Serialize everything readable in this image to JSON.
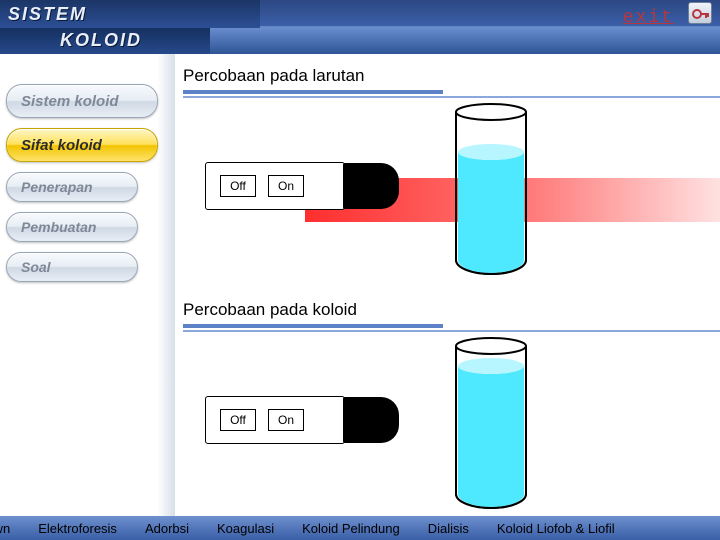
{
  "app": {
    "title1": "SISTEM",
    "title2": "KOLOID",
    "exit_label": "exit"
  },
  "nav": {
    "items": [
      {
        "label": "Sistem koloid",
        "small": false
      },
      {
        "label": "Sifat koloid",
        "small": false
      },
      {
        "label": "Penerapan",
        "small": true
      },
      {
        "label": "Pembuatan",
        "small": true
      },
      {
        "label": "Soal",
        "small": true
      }
    ],
    "active_index": 1
  },
  "sections": {
    "top": {
      "title": "Percobaan pada larutan",
      "off": "Off",
      "on": "On",
      "show_beam": true,
      "liquid_color": "#4fe9ff",
      "liquid_top": "#b8f6ff"
    },
    "bottom": {
      "title": "Percobaan pada koloid",
      "off": "Off",
      "on": "On",
      "show_beam": false,
      "liquid_color": "#4fe9ff",
      "liquid_top": "#b8f6ff"
    }
  },
  "colors": {
    "accent": "#5d82c8",
    "beam": "#ff3a3a"
  },
  "bottom_nav": {
    "items": [
      "rown",
      "Elektroforesis",
      "Adorbsi",
      "Koagulasi",
      "Koloid Pelindung",
      "Dialisis",
      "Koloid Liofob & Liofil"
    ]
  }
}
